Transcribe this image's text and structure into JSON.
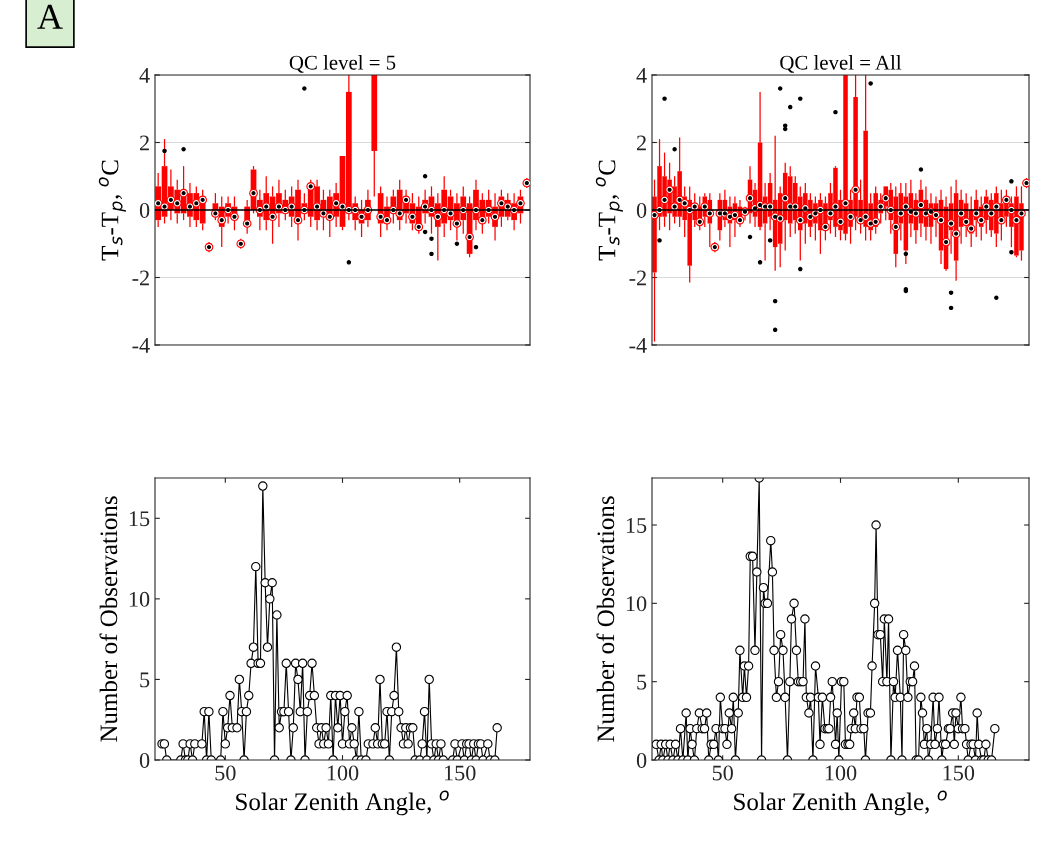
{
  "chart_data": [
    {
      "type": "box",
      "title": "QC level = 5",
      "ylabel": "T$_{s}$-T$_{p}$, $^{o}$C",
      "annotations": [
        "A"
      ],
      "categories": [
        null,
        null,
        null,
        null,
        null,
        null,
        null,
        null,
        null,
        null,
        null,
        null,
        null,
        null,
        null,
        null,
        null,
        null,
        null,
        null,
        null,
        null,
        null,
        null,
        null,
        null,
        null,
        null,
        null,
        null,
        null,
        null,
        null,
        null,
        null,
        null,
        null,
        null,
        null,
        null,
        null,
        null,
        null,
        null,
        null,
        null,
        null,
        null,
        null,
        null,
        null,
        null,
        null,
        null,
        null,
        null,
        null,
        null,
        null
      ],
      "ylim": [
        -4,
        4
      ],
      "yticks": [
        4,
        2,
        0,
        -2,
        -4
      ],
      "tick_labels": "y",
      "grid": "y",
      "marker": "circle",
      "ref_lines": [
        {
          "axis": "y",
          "value": 0,
          "color": "#000000"
        }
      ],
      "series": [
        {
          "color": "#ff0000",
          "boxes": [
            {
              "low": -0.5,
              "q1": -0.3,
              "median": 0.2,
              "q3": 0.7,
              "high": 1.1
            },
            {
              "low": -0.4,
              "q1": -0.2,
              "median": 0.1,
              "q3": 1.3,
              "high": 2.1,
              "outliers": [
                1.75
              ]
            },
            {
              "low": -0.3,
              "q1": 0.0,
              "median": 0.3,
              "q3": 0.7,
              "high": 1.2
            },
            {
              "low": -0.4,
              "q1": -0.1,
              "median": 0.2,
              "q3": 0.6,
              "high": 0.9
            },
            {
              "low": -0.3,
              "q1": -0.1,
              "median": 0.5,
              "q3": 0.6,
              "high": 1.3,
              "outliers": [
                1.8
              ]
            },
            {
              "low": -0.5,
              "q1": -0.2,
              "median": 0.1,
              "q3": 0.5,
              "high": 0.8
            },
            {
              "low": -0.5,
              "q1": -0.3,
              "median": 0.2,
              "q3": 0.5,
              "high": 0.7
            },
            {
              "low": -0.6,
              "q1": -0.4,
              "median": 0.3,
              "q3": 0.4,
              "high": 0.6
            },
            {
              "low": -1.25,
              "q1": -1.2,
              "median": -1.1,
              "q3": -1.0,
              "high": -0.95
            },
            {
              "low": -0.3,
              "q1": -0.2,
              "median": -0.1,
              "q3": 0.2,
              "high": 0.5
            },
            {
              "low": -1.1,
              "q1": -0.5,
              "median": -0.3,
              "q3": 0.1,
              "high": 0.4
            },
            {
              "low": -0.4,
              "q1": -0.2,
              "median": 0.0,
              "q3": 0.2,
              "high": 0.4
            },
            {
              "low": -0.6,
              "q1": -0.3,
              "median": -0.2,
              "q3": 0.1,
              "high": 0.4
            },
            {
              "low": -1.15,
              "q1": -1.1,
              "median": -1.0,
              "q3": -0.9,
              "high": -0.85
            },
            {
              "low": -0.7,
              "q1": -0.5,
              "median": -0.4,
              "q3": 0.1,
              "high": 0.3
            },
            {
              "low": -0.1,
              "q1": 0.0,
              "median": 0.5,
              "q3": 1.2,
              "high": 1.3
            },
            {
              "low": -0.6,
              "q1": -0.2,
              "median": 0.0,
              "q3": 0.3,
              "high": 0.6
            },
            {
              "low": -0.6,
              "q1": -0.3,
              "median": 0.1,
              "q3": 0.5,
              "high": 1.0
            },
            {
              "low": -1.0,
              "q1": -0.3,
              "median": -0.2,
              "q3": 0.4,
              "high": 0.7
            },
            {
              "low": -0.5,
              "q1": -0.1,
              "median": 0.1,
              "q3": 0.5,
              "high": 0.9
            },
            {
              "low": -0.3,
              "q1": -0.1,
              "median": 0.0,
              "q3": 0.3,
              "high": 0.6
            },
            {
              "low": -0.5,
              "q1": -0.2,
              "median": 0.1,
              "q3": 0.4,
              "high": 0.7
            },
            {
              "low": -0.9,
              "q1": -0.4,
              "median": -0.3,
              "q3": 0.6,
              "high": 0.9
            },
            {
              "low": -0.3,
              "q1": -0.1,
              "median": 0.0,
              "q3": 0.2,
              "high": 0.5,
              "outliers": [
                3.6
              ]
            },
            {
              "low": -0.5,
              "q1": -0.2,
              "median": 0.7,
              "q3": 0.8,
              "high": 0.9
            },
            {
              "low": -0.6,
              "q1": -0.3,
              "median": 0.1,
              "q3": 0.7,
              "high": 0.9
            },
            {
              "low": -0.6,
              "q1": -0.2,
              "median": -0.1,
              "q3": 0.3,
              "high": 0.6
            },
            {
              "low": -0.8,
              "q1": -0.3,
              "median": -0.2,
              "q3": 0.4,
              "high": 0.6
            },
            {
              "low": -0.5,
              "q1": -0.2,
              "median": 0.2,
              "q3": 0.5,
              "high": 0.8
            },
            {
              "low": -0.6,
              "q1": -0.5,
              "median": 0.1,
              "q3": 1.6,
              "high": 1.6
            },
            {
              "low": -0.3,
              "q1": -0.1,
              "median": 0.0,
              "q3": 3.5,
              "high": 4.0,
              "outliers": [
                -1.55
              ]
            },
            {
              "low": -0.6,
              "q1": -0.3,
              "median": 0.0,
              "q3": 0.2,
              "high": 0.4
            },
            {
              "low": -0.8,
              "q1": -0.4,
              "median": -0.2,
              "q3": 0.0,
              "high": 0.3
            },
            {
              "low": -0.5,
              "q1": -0.3,
              "median": 0.0,
              "q3": 0.3,
              "high": 0.6
            },
            {
              "low": 0.4,
              "q1": 1.75,
              "median": 4.0,
              "q3": 4.0,
              "high": 4.0
            },
            {
              "low": -0.8,
              "q1": -0.4,
              "median": -0.2,
              "q3": 0.5,
              "high": 0.7
            },
            {
              "low": -0.6,
              "q1": -0.4,
              "median": -0.3,
              "q3": 0.1,
              "high": 0.4
            },
            {
              "low": -0.4,
              "q1": -0.1,
              "median": 0.0,
              "q3": 0.4,
              "high": 0.6
            },
            {
              "low": -0.6,
              "q1": -0.3,
              "median": -0.1,
              "q3": 0.6,
              "high": 0.9
            },
            {
              "low": -0.4,
              "q1": -0.1,
              "median": 0.3,
              "q3": 0.4,
              "high": 0.6
            },
            {
              "low": -0.6,
              "q1": -0.4,
              "median": -0.2,
              "q3": 0.2,
              "high": 0.5
            },
            {
              "low": -0.7,
              "q1": -0.6,
              "median": -0.5,
              "q3": 0.1,
              "high": 0.4
            },
            {
              "low": -0.4,
              "q1": -0.1,
              "median": 0.1,
              "q3": 0.3,
              "high": 0.6,
              "outliers": [
                -0.65,
                1.0
              ]
            },
            {
              "low": -0.7,
              "q1": -0.2,
              "median": 0.0,
              "q3": 0.4,
              "high": 0.7,
              "outliers": [
                -0.85,
                -1.3
              ]
            },
            {
              "low": -1.5,
              "q1": -0.5,
              "median": -0.2,
              "q3": 0.2,
              "high": 0.5
            },
            {
              "low": -0.8,
              "q1": -0.4,
              "median": 0.0,
              "q3": 0.6,
              "high": 1.0
            },
            {
              "low": -0.6,
              "q1": -0.3,
              "median": -0.1,
              "q3": 0.4,
              "high": 0.6
            },
            {
              "low": -0.9,
              "q1": -0.5,
              "median": -0.4,
              "q3": 0.2,
              "high": 0.5,
              "outliers": [
                -1.0
              ]
            },
            {
              "low": -0.7,
              "q1": -0.3,
              "median": 0.0,
              "q3": 0.4,
              "high": 0.7
            },
            {
              "low": -1.4,
              "q1": -1.3,
              "median": -0.8,
              "q3": 0.2,
              "high": 0.4
            },
            {
              "low": -0.6,
              "q1": -0.3,
              "median": 0.0,
              "q3": 0.6,
              "high": 0.9,
              "outliers": [
                -1.1
              ]
            },
            {
              "low": -0.7,
              "q1": -0.4,
              "median": -0.3,
              "q3": 0.3,
              "high": 0.5
            },
            {
              "low": -0.4,
              "q1": -0.2,
              "median": 0.0,
              "q3": 0.3,
              "high": 0.6
            },
            {
              "low": -0.9,
              "q1": -0.5,
              "median": -0.2,
              "q3": 0.1,
              "high": 0.5
            },
            {
              "low": -0.5,
              "q1": -0.2,
              "median": 0.2,
              "q3": 0.4,
              "high": 0.6
            },
            {
              "low": -0.3,
              "q1": -0.2,
              "median": 0.1,
              "q3": 0.3,
              "high": 0.5
            },
            {
              "low": -0.6,
              "q1": -0.3,
              "median": 0.0,
              "q3": 0.2,
              "high": 0.5
            },
            {
              "low": -0.4,
              "q1": -0.1,
              "median": 0.2,
              "q3": 0.4,
              "high": 0.6
            },
            {
              "low": 0.65,
              "q1": 0.7,
              "median": 0.8,
              "q3": 0.9,
              "high": 0.95
            }
          ]
        }
      ]
    },
    {
      "type": "box",
      "title": "QC level = All",
      "ylabel": "T$_{s}$-T$_{p}$, $^{o}$C",
      "categories": [
        null,
        null,
        null,
        null,
        null,
        null,
        null,
        null,
        null,
        null,
        null,
        null,
        null,
        null,
        null,
        null,
        null,
        null,
        null,
        null,
        null,
        null,
        null,
        null,
        null,
        null,
        null,
        null,
        null,
        null,
        null,
        null,
        null,
        null,
        null,
        null,
        null,
        null,
        null,
        null,
        null,
        null,
        null,
        null,
        null,
        null,
        null,
        null,
        null,
        null,
        null,
        null,
        null,
        null,
        null,
        null,
        null,
        null,
        null,
        null,
        null,
        null,
        null,
        null,
        null,
        null,
        null,
        null,
        null,
        null,
        null,
        null,
        null,
        null,
        null
      ],
      "ylim": [
        -4,
        4
      ],
      "yticks": [
        4,
        2,
        0,
        -2,
        -4
      ],
      "tick_labels": "y",
      "grid": "y",
      "marker": "circle",
      "ref_lines": [
        {
          "axis": "y",
          "value": 0,
          "color": "#000000"
        }
      ],
      "series": [
        {
          "color": "#ff0000",
          "boxes": [
            {
              "low": -3.9,
              "q1": -1.85,
              "median": -0.15,
              "q3": 0.4,
              "high": 0.9
            },
            {
              "low": -0.6,
              "q1": -0.2,
              "median": 0.0,
              "q3": 1.3,
              "high": 2.1,
              "outliers": [
                -0.9
              ]
            },
            {
              "low": -0.5,
              "q1": -0.2,
              "median": 0.3,
              "q3": 1.0,
              "high": 1.7,
              "outliers": [
                3.3
              ]
            },
            {
              "low": -0.6,
              "q1": -0.1,
              "median": 0.6,
              "q3": 0.9,
              "high": 1.4
            },
            {
              "low": -0.4,
              "q1": -0.2,
              "median": 0.1,
              "q3": 0.7,
              "high": 1.0,
              "outliers": [
                1.8
              ]
            },
            {
              "low": -0.5,
              "q1": -0.2,
              "median": 0.3,
              "q3": 1.15,
              "high": 2.15
            },
            {
              "low": -0.8,
              "q1": -0.3,
              "median": 0.2,
              "q3": 0.4,
              "high": 0.7
            },
            {
              "low": -2.15,
              "q1": -1.65,
              "median": 0.0,
              "q3": 0.3,
              "high": 0.7
            },
            {
              "low": -0.5,
              "q1": -0.3,
              "median": 0.1,
              "q3": 0.2,
              "high": 0.5
            },
            {
              "low": -0.6,
              "q1": -0.4,
              "median": -0.35,
              "q3": 0.1,
              "high": 0.4
            },
            {
              "low": -0.5,
              "q1": -0.2,
              "median": 0.1,
              "q3": 0.4,
              "high": 0.5
            },
            {
              "low": -1.1,
              "q1": -0.4,
              "median": -0.1,
              "q3": 0.3,
              "high": 0.5
            },
            {
              "low": -1.25,
              "q1": -1.2,
              "median": -1.1,
              "q3": -1.0,
              "high": -0.95
            },
            {
              "low": -0.9,
              "q1": -0.6,
              "median": -0.1,
              "q3": 0.3,
              "high": 0.5
            },
            {
              "low": -0.5,
              "q1": -0.3,
              "median": -0.1,
              "q3": 0.3,
              "high": 0.6
            },
            {
              "low": -1.1,
              "q1": -0.4,
              "median": -0.2,
              "q3": 0.1,
              "high": 0.4
            },
            {
              "low": -0.8,
              "q1": -0.3,
              "median": -0.15,
              "q3": 0.2,
              "high": 0.4
            },
            {
              "low": -0.5,
              "q1": -0.4,
              "median": -0.3,
              "q3": 0.1,
              "high": 0.3
            },
            {
              "low": -0.3,
              "q1": -0.1,
              "median": -0.05,
              "q3": 0.0,
              "high": 0.1
            },
            {
              "low": -0.4,
              "q1": -0.1,
              "median": 0.35,
              "q3": 0.9,
              "high": 1.3,
              "outliers": [
                -0.8
              ]
            },
            {
              "low": -0.5,
              "q1": -0.2,
              "median": 0.05,
              "q3": 0.6,
              "high": 0.8
            },
            {
              "low": -0.6,
              "q1": -0.5,
              "median": 0.15,
              "q3": 2.0,
              "high": 3.5,
              "outliers": [
                -1.55
              ]
            },
            {
              "low": -1.5,
              "q1": -0.4,
              "median": 0.1,
              "q3": 0.4,
              "high": 0.8
            },
            {
              "low": -0.6,
              "q1": -0.2,
              "median": 0.1,
              "q3": 0.8,
              "high": 1.1,
              "outliers": [
                -0.9
              ]
            },
            {
              "low": -1.8,
              "q1": -1.1,
              "median": -0.2,
              "q3": 0.3,
              "high": 2.2,
              "outliers": [
                -2.7,
                -3.55
              ]
            },
            {
              "low": -1.7,
              "q1": -1.0,
              "median": -0.25,
              "q3": 0.5,
              "high": 0.7,
              "outliers": [
                3.6
              ]
            },
            {
              "low": -1.2,
              "q1": -0.3,
              "median": 0.35,
              "q3": 1.1,
              "high": 1.4,
              "outliers": [
                2.5,
                2.4
              ]
            },
            {
              "low": -0.8,
              "q1": -0.4,
              "median": 0.1,
              "q3": 1.0,
              "high": 1.3,
              "outliers": [
                3.05
              ]
            },
            {
              "low": -0.7,
              "q1": -0.3,
              "median": 0.1,
              "q3": 0.8,
              "high": 1.0
            },
            {
              "low": -1.5,
              "q1": -0.6,
              "median": -0.3,
              "q3": 0.4,
              "high": 0.7,
              "outliers": [
                3.3,
                -1.75
              ]
            },
            {
              "low": -1.0,
              "q1": -0.4,
              "median": 0.05,
              "q3": 0.5,
              "high": 0.8
            },
            {
              "low": -0.8,
              "q1": -0.5,
              "median": -0.2,
              "q3": 0.3,
              "high": 0.5
            },
            {
              "low": -0.9,
              "q1": -0.4,
              "median": -0.1,
              "q3": 0.2,
              "high": 0.4
            },
            {
              "low": -1.3,
              "q1": -0.6,
              "median": 0.0,
              "q3": 0.3,
              "high": 0.5
            },
            {
              "low": -0.9,
              "q1": -0.6,
              "median": -0.5,
              "q3": 0.2,
              "high": 0.4
            },
            {
              "low": -0.7,
              "q1": -0.3,
              "median": -0.1,
              "q3": 0.5,
              "high": 0.8
            },
            {
              "low": -0.8,
              "q1": -0.5,
              "median": 0.1,
              "q3": 1.25,
              "high": 1.3,
              "outliers": [
                2.9
              ]
            },
            {
              "low": -0.9,
              "q1": -0.6,
              "median": -0.35,
              "q3": 0.3,
              "high": 0.6
            },
            {
              "low": -0.9,
              "q1": -0.7,
              "median": 0.2,
              "q3": 4.0,
              "high": 4.0
            },
            {
              "low": -1.0,
              "q1": -0.5,
              "median": -0.2,
              "q3": 0.3,
              "high": 0.6
            },
            {
              "low": -0.6,
              "q1": -0.2,
              "median": 0.6,
              "q3": 3.35,
              "high": 4.0
            },
            {
              "low": -0.7,
              "q1": -0.4,
              "median": -0.3,
              "q3": 0.3,
              "high": 0.9
            },
            {
              "low": -0.9,
              "q1": -0.5,
              "median": -0.2,
              "q3": 2.35,
              "high": 4.0
            },
            {
              "low": -0.9,
              "q1": -0.6,
              "median": -0.4,
              "q3": 0.2,
              "high": 0.5,
              "outliers": [
                3.75
              ]
            },
            {
              "low": -0.7,
              "q1": -0.5,
              "median": -0.35,
              "q3": 0.5,
              "high": 0.7
            },
            {
              "low": -0.4,
              "q1": -0.1,
              "median": 0.1,
              "q3": 0.3,
              "high": 0.5
            },
            {
              "low": -0.3,
              "q1": 0.1,
              "median": 0.35,
              "q3": 0.7,
              "high": 0.7
            },
            {
              "low": -0.7,
              "q1": -0.3,
              "median": 0.0,
              "q3": 0.6,
              "high": 0.8
            },
            {
              "low": -1.7,
              "q1": -1.3,
              "median": -0.5,
              "q3": 0.4,
              "high": 0.7
            },
            {
              "low": -0.9,
              "q1": -0.4,
              "median": -0.1,
              "q3": 0.5,
              "high": 0.8
            },
            {
              "low": -1.6,
              "q1": -1.2,
              "median": 0.1,
              "q3": 0.4,
              "high": 0.8,
              "outliers": [
                -2.35,
                -2.4,
                -1.3
              ]
            },
            {
              "low": -0.8,
              "q1": -0.4,
              "median": -0.05,
              "q3": 0.5,
              "high": 0.9
            },
            {
              "low": -1.0,
              "q1": -0.6,
              "median": -0.1,
              "q3": 0.3,
              "high": 0.5
            },
            {
              "low": -0.8,
              "q1": -0.4,
              "median": 0.15,
              "q3": 0.6,
              "high": 0.9,
              "outliers": [
                1.2
              ]
            },
            {
              "low": -0.9,
              "q1": -0.5,
              "median": -0.1,
              "q3": 0.3,
              "high": 0.7
            },
            {
              "low": -1.0,
              "q1": -0.5,
              "median": -0.05,
              "q3": 0.2,
              "high": 0.5
            },
            {
              "low": -0.8,
              "q1": -0.3,
              "median": -0.15,
              "q3": 0.2,
              "high": 0.4
            },
            {
              "low": -1.6,
              "q1": -1.2,
              "median": -0.3,
              "q3": 0.3,
              "high": 0.6
            },
            {
              "low": -1.8,
              "q1": -1.75,
              "median": -0.95,
              "q3": 0.1,
              "high": 0.4
            },
            {
              "low": -1.3,
              "q1": -0.6,
              "median": -0.4,
              "q3": 0.2,
              "high": 0.7,
              "outliers": [
                -2.45,
                -2.9
              ]
            },
            {
              "low": -2.1,
              "q1": -1.5,
              "median": -0.7,
              "q3": 0.5,
              "high": 0.9
            },
            {
              "low": -1.0,
              "q1": -0.5,
              "median": -0.1,
              "q3": 0.3,
              "high": 0.6
            },
            {
              "low": -0.8,
              "q1": -0.4,
              "median": -0.35,
              "q3": 0.2,
              "high": 0.5
            },
            {
              "low": -1.1,
              "q1": -0.7,
              "median": -0.55,
              "q3": 0.0,
              "high": 0.4
            },
            {
              "low": -0.8,
              "q1": -0.3,
              "median": -0.1,
              "q3": 0.3,
              "high": 0.6
            },
            {
              "low": -0.9,
              "q1": -0.5,
              "median": -0.3,
              "q3": 0.1,
              "high": 0.4
            },
            {
              "low": -0.7,
              "q1": -0.3,
              "median": 0.1,
              "q3": 0.4,
              "high": 0.6
            },
            {
              "low": -0.8,
              "q1": -0.6,
              "median": -0.1,
              "q3": 0.3,
              "high": 0.5
            },
            {
              "low": -1.1,
              "q1": -0.7,
              "median": 0.1,
              "q3": 0.5,
              "high": 0.7,
              "outliers": [
                -2.6
              ]
            },
            {
              "low": -0.9,
              "q1": -0.4,
              "median": -0.3,
              "q3": 0.2,
              "high": 0.6
            },
            {
              "low": -0.5,
              "q1": -0.2,
              "median": 0.3,
              "q3": 0.4,
              "high": 0.6
            },
            {
              "low": -1.1,
              "q1": -0.5,
              "median": 0.0,
              "q3": 0.2,
              "high": 0.4,
              "outliers": [
                0.85,
                -1.25
              ]
            },
            {
              "low": -1.4,
              "q1": -1.35,
              "median": -0.3,
              "q3": 0.4,
              "high": 0.7
            },
            {
              "low": -1.5,
              "q1": -1.2,
              "median": -0.1,
              "q3": 0.2,
              "high": 0.7
            },
            {
              "low": 0.65,
              "q1": 0.7,
              "median": 0.8,
              "q3": 0.9,
              "high": 0.95
            }
          ]
        }
      ]
    },
    {
      "type": "line",
      "xlabel": "Solar Zenith Angle, $^{o}$",
      "ylabel": "Number of Observations",
      "xlim": [
        20,
        180
      ],
      "xticks": [
        50,
        100,
        150
      ],
      "ylim": [
        0,
        17.5
      ],
      "yticks": [
        0,
        5,
        10,
        15
      ],
      "marker": "circle",
      "series": [
        {
          "color": "#000000",
          "x": [
            23,
            24,
            25,
            31,
            32,
            33,
            34,
            35,
            36,
            37,
            40,
            41,
            42,
            43,
            44,
            48,
            49,
            50,
            51,
            52,
            53,
            55,
            56,
            57,
            58,
            59,
            60,
            61,
            62,
            63,
            64,
            65,
            66,
            67,
            68,
            69,
            70,
            71,
            72,
            73,
            74,
            75,
            76,
            77,
            78,
            79,
            80,
            81,
            82,
            83,
            84,
            85,
            86,
            87,
            88,
            89,
            90,
            91,
            92,
            93,
            94,
            95,
            96,
            97,
            98,
            99,
            100,
            101,
            102,
            103,
            104,
            105,
            106,
            107,
            108,
            110,
            111,
            113,
            114,
            115,
            116,
            117,
            118,
            119,
            120,
            121,
            122,
            123,
            124,
            125,
            126,
            127,
            128,
            129,
            130,
            131,
            133,
            134,
            135,
            136,
            137,
            138,
            139,
            140,
            141,
            142,
            143,
            147,
            148,
            149,
            151,
            152,
            153,
            154,
            155,
            156,
            157,
            158,
            159,
            160,
            162,
            163,
            165,
            166
          ],
          "values": [
            1,
            1,
            0,
            0,
            1,
            0,
            0,
            1,
            0,
            1,
            1,
            3,
            0,
            3,
            0,
            0,
            3,
            1,
            2,
            4,
            2,
            2,
            5,
            3,
            0,
            3,
            4,
            6,
            7,
            12,
            6,
            6,
            17,
            11,
            7,
            10,
            11,
            0,
            9,
            2,
            3,
            3,
            6,
            3,
            0,
            2,
            6,
            5,
            3,
            6,
            0,
            3,
            4,
            6,
            4,
            2,
            1,
            2,
            1,
            2,
            1,
            4,
            0,
            4,
            2,
            4,
            1,
            3,
            4,
            1,
            2,
            1,
            0,
            3,
            0,
            0,
            1,
            1,
            2,
            1,
            5,
            1,
            1,
            3,
            0,
            3,
            4,
            7,
            3,
            2,
            1,
            2,
            1,
            2,
            2,
            0,
            0,
            1,
            3,
            0,
            5,
            1,
            0,
            1,
            0,
            1,
            0,
            0,
            1,
            0,
            1,
            0,
            1,
            1,
            0,
            1,
            0,
            1,
            1,
            0,
            1,
            0,
            0,
            2
          ]
        }
      ]
    },
    {
      "type": "line",
      "xlabel": "Solar Zenith Angle, $^{o}$",
      "ylabel": "Number of Observations",
      "xlim": [
        20,
        180
      ],
      "xticks": [
        50,
        100,
        150
      ],
      "ylim": [
        0,
        18
      ],
      "yticks": [
        0,
        5,
        10,
        15
      ],
      "marker": "circle",
      "series": [
        {
          "color": "#000000",
          "x": [
            21.8,
            23,
            23.9,
            24.6,
            25.8,
            26.8,
            27.7,
            28.9,
            30,
            31,
            32.1,
            33.1,
            34.5,
            35.2,
            36.2,
            37,
            38,
            39,
            40.1,
            41.3,
            42.3,
            43.2,
            44.1,
            45.1,
            46.2,
            47.2,
            48.2,
            49,
            50,
            51,
            51.8,
            52.8,
            53.8,
            54.5,
            55.4,
            56.6,
            57.3,
            58.5,
            59.2,
            60.1,
            61,
            61.7,
            62.7,
            63.7,
            64.5,
            65.5,
            66.5,
            67.3,
            68,
            69,
            70.4,
            71.1,
            71.8,
            72.8,
            73.7,
            74.6,
            75.6,
            76.5,
            77.5,
            78.5,
            79.2,
            80.3,
            81.3,
            82.1,
            83.1,
            84.1,
            84.9,
            85.5,
            86.6,
            87.3,
            88.3,
            89.4,
            90.6,
            91.3,
            92.3,
            93.4,
            94.4,
            95.1,
            95.8,
            96.5,
            97.9,
            98.6,
            99.3,
            100.4,
            101.4,
            102.1,
            103.2,
            103.9,
            104.6,
            105.6,
            106.3,
            107,
            108,
            108.7,
            109.9,
            110.6,
            111.7,
            112.7,
            113.4,
            114.5,
            115.1,
            115.9,
            116.9,
            117.9,
            118.6,
            119.7,
            120.4,
            121.4,
            122.5,
            123.2,
            124.2,
            125.4,
            126.1,
            126.8,
            127.7,
            128.6,
            129.6,
            130.6,
            131.4,
            132.1,
            133.1,
            134.1,
            134.8,
            135.6,
            136.6,
            137.3,
            138.3,
            139.3,
            140.1,
            141.1,
            141.8,
            143,
            143.7,
            144.6,
            145.8,
            146.5,
            147.6,
            148.3,
            149,
            150,
            151.1,
            151.8,
            152.8,
            153.5,
            154.2,
            155.4,
            156.3,
            157.3,
            158,
            158.7,
            159.9,
            160.8,
            161.7,
            162.7,
            164.1,
            165.5
          ],
          "values": [
            1,
            0,
            1,
            0,
            1,
            0,
            1,
            0,
            1,
            0,
            2,
            0,
            3,
            0,
            2,
            1,
            0,
            2,
            3,
            2,
            2,
            3,
            0,
            1,
            1,
            2,
            0,
            4,
            2,
            2,
            1,
            3,
            2,
            4,
            0,
            3,
            7,
            4,
            6,
            4,
            6,
            13,
            13,
            7,
            12,
            18,
            0,
            11,
            10,
            10,
            14,
            12,
            7,
            4,
            5,
            8,
            7,
            4,
            0,
            5,
            9,
            10,
            7,
            5,
            5,
            5,
            9,
            4,
            3,
            4,
            0,
            6,
            4,
            1,
            4,
            2,
            2,
            2,
            4,
            5,
            1,
            3,
            0,
            5,
            5,
            1,
            1,
            1,
            2,
            3,
            2,
            4,
            4,
            2,
            2,
            0,
            3,
            3,
            6,
            10,
            15,
            8,
            8,
            5,
            9,
            5,
            9,
            0,
            5,
            4,
            7,
            4,
            0,
            8,
            7,
            4,
            5,
            5,
            6,
            0,
            0,
            4,
            3,
            1,
            2,
            0,
            1,
            4,
            1,
            2,
            4,
            0,
            1,
            1,
            2,
            2,
            3,
            1,
            3,
            2,
            4,
            2,
            2,
            1,
            0,
            1,
            1,
            0,
            3,
            1,
            0,
            0,
            1,
            0,
            0,
            2
          ]
        }
      ]
    }
  ]
}
